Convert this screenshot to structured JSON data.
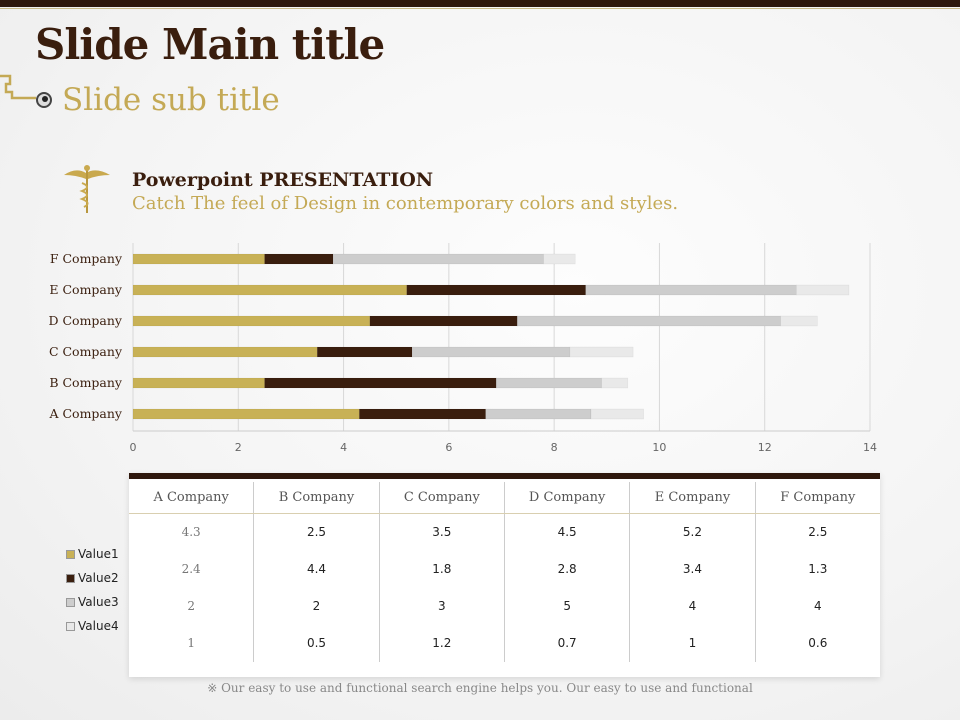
{
  "slide": {
    "title": "Slide Main title",
    "subtitle": "Slide sub title",
    "heading": "Powerpoint PRESENTATION",
    "tagline": "Catch The feel of Design in contemporary colors and styles.",
    "footnote": "※ Our easy to use and functional search engine helps you. Our easy to use and functional"
  },
  "colors": {
    "Value1": "#c8b156",
    "Value2": "#3a1e0e",
    "Value3": "#cdcdcd",
    "Value4": "#e9e9e9"
  },
  "chart_data": {
    "type": "bar",
    "orientation": "horizontal",
    "stacked": true,
    "categories": [
      "A Company",
      "B Company",
      "C Company",
      "D Company",
      "E Company",
      "F Company"
    ],
    "series": [
      {
        "name": "Value1",
        "values": [
          4.3,
          2.5,
          3.5,
          4.5,
          5.2,
          2.5
        ]
      },
      {
        "name": "Value2",
        "values": [
          2.4,
          4.4,
          1.8,
          2.8,
          3.4,
          1.3
        ]
      },
      {
        "name": "Value3",
        "values": [
          2,
          2,
          3,
          5,
          4,
          4
        ]
      },
      {
        "name": "Value4",
        "values": [
          1,
          0.5,
          1.2,
          0.7,
          1,
          0.6
        ]
      }
    ],
    "xlim": [
      0,
      14
    ],
    "xticks": [
      "0",
      "2",
      "4",
      "6",
      "8",
      "10",
      "12",
      "14"
    ],
    "grid": true,
    "legend": "bottom-left"
  },
  "table": {
    "headers": [
      "A Company",
      "B Company",
      "C Company",
      "D Company",
      "E Company",
      "F Company"
    ],
    "rows": [
      [
        "4.3",
        "2.5",
        "3.5",
        "4.5",
        "5.2",
        "2.5"
      ],
      [
        "2.4",
        "4.4",
        "1.8",
        "2.8",
        "3.4",
        "1.3"
      ],
      [
        "2",
        "2",
        "3",
        "5",
        "4",
        "4"
      ],
      [
        "1",
        "0.5",
        "1.2",
        "0.7",
        "1",
        "0.6"
      ]
    ]
  }
}
